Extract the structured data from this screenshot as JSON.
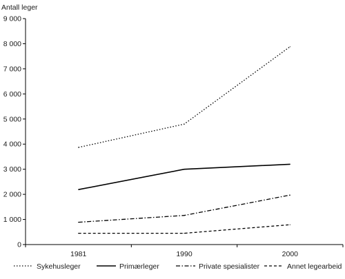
{
  "chart_data": {
    "type": "line",
    "title": "",
    "xlabel": "",
    "ylabel": "Antall leger",
    "categories": [
      "1981",
      "1990",
      "2000"
    ],
    "ylim": [
      0,
      9000
    ],
    "yticks": [
      0,
      1000,
      2000,
      3000,
      4000,
      5000,
      6000,
      7000,
      8000,
      9000
    ],
    "ytick_labels": [
      "0",
      "1 000",
      "2 000",
      "3 000",
      "4 000",
      "5 000",
      "6 000",
      "7 000",
      "8 000",
      "9 000"
    ],
    "grid": false,
    "legend_position": "bottom",
    "series": [
      {
        "name": "Sykehusleger",
        "values": [
          3870,
          4800,
          7880
        ],
        "line_style": "dotted",
        "color": "#000000"
      },
      {
        "name": "Primærleger",
        "values": [
          2190,
          3000,
          3200
        ],
        "line_style": "solid",
        "color": "#000000"
      },
      {
        "name": "Private spesialister",
        "values": [
          890,
          1160,
          1970
        ],
        "line_style": "dash-dot",
        "color": "#000000"
      },
      {
        "name": "Annet legearbeid",
        "values": [
          450,
          450,
          790
        ],
        "line_style": "dashed",
        "color": "#000000"
      }
    ]
  }
}
